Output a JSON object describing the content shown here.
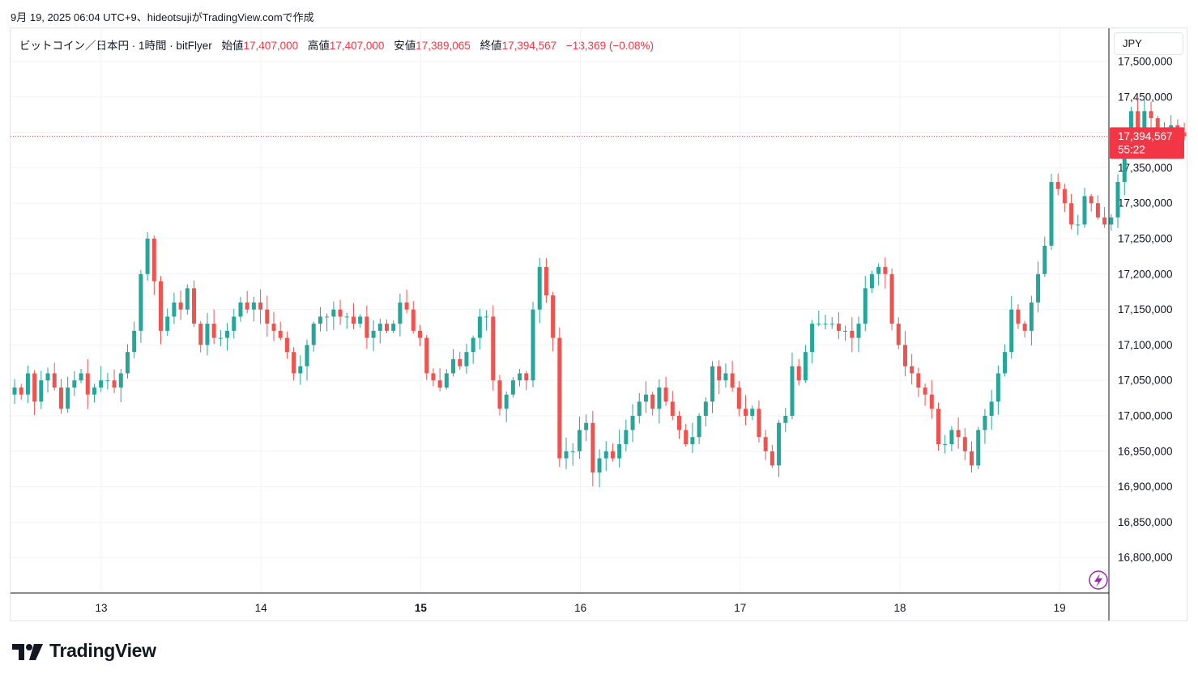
{
  "caption": "9月 19, 2025 06:04 UTC+9、hideotsujiがTradingView.comで作成",
  "legend": {
    "symbol": "ビットコイン／日本円 · 1時間 · bitFlyer",
    "open_label": "始値",
    "open_value": "17,407,000",
    "high_label": "高値",
    "high_value": "17,407,000",
    "low_label": "安値",
    "low_value": "17,389,065",
    "close_label": "終値",
    "close_value": "17,394,567",
    "change": "−13,369 (−0.08%)"
  },
  "currency_button": "JPY",
  "price_tag": {
    "price": "17,394,567",
    "countdown": "55:22"
  },
  "brand": "TradingView",
  "colors": {
    "up": "#26a69a",
    "down": "#ef5350",
    "grid": "#f0f3fa",
    "axis_text": "#131722",
    "accent": "#9c27b0"
  },
  "icons": [
    "lightning-icon",
    "tradingview-logo-icon"
  ],
  "chart_data": {
    "type": "candlestick",
    "title": "ビットコイン／日本円 · 1時間 · bitFlyer",
    "currency": "JPY",
    "y_ticks": [
      "16,800,000",
      "16,850,000",
      "16,900,000",
      "16,950,000",
      "17,000,000",
      "17,050,000",
      "17,100,000",
      "17,150,000",
      "17,200,000",
      "17,250,000",
      "17,300,000",
      "17,350,000",
      "17,400,000",
      "17,450,000",
      "17,500,000"
    ],
    "x_ticks": [
      {
        "label": "13",
        "bold": false
      },
      {
        "label": "14",
        "bold": false
      },
      {
        "label": "15",
        "bold": true
      },
      {
        "label": "16",
        "bold": false
      },
      {
        "label": "17",
        "bold": false
      },
      {
        "label": "18",
        "bold": false
      },
      {
        "label": "19",
        "bold": false
      }
    ],
    "ylim": [
      16755000,
      17510000
    ],
    "last_price": 17394567,
    "grid": true,
    "closes": [
      17040000,
      17030000,
      17060000,
      17020000,
      17050000,
      17060000,
      17040000,
      17010000,
      17040000,
      17050000,
      17060000,
      17030000,
      17040000,
      17050000,
      17050000,
      17040000,
      17060000,
      17090000,
      17120000,
      17200000,
      17250000,
      17190000,
      17120000,
      17140000,
      17160000,
      17150000,
      17180000,
      17130000,
      17100000,
      17130000,
      17110000,
      17110000,
      17120000,
      17140000,
      17160000,
      17150000,
      17160000,
      17150000,
      17130000,
      17120000,
      17110000,
      17090000,
      17060000,
      17070000,
      17100000,
      17130000,
      17140000,
      17140000,
      17150000,
      17140000,
      17140000,
      17130000,
      17140000,
      17110000,
      17120000,
      17130000,
      17120000,
      17130000,
      17160000,
      17150000,
      17120000,
      17110000,
      17060000,
      17050000,
      17040000,
      17060000,
      17080000,
      17070000,
      17090000,
      17110000,
      17140000,
      17140000,
      17050000,
      17010000,
      17030000,
      17050000,
      17060000,
      17050000,
      17150000,
      17210000,
      17170000,
      17110000,
      16940000,
      16950000,
      16950000,
      16980000,
      16990000,
      16920000,
      16940000,
      16950000,
      16940000,
      16960000,
      16980000,
      17000000,
      17020000,
      17030000,
      17010000,
      17040000,
      17020000,
      17000000,
      16980000,
      16960000,
      16970000,
      17000000,
      17020000,
      17070000,
      17050000,
      17060000,
      17040000,
      17010000,
      17000000,
      17010000,
      16970000,
      16950000,
      16930000,
      16990000,
      17000000,
      17070000,
      17050000,
      17090000,
      17130000,
      17130000,
      17130000,
      17130000,
      17120000,
      17120000,
      17110000,
      17130000,
      17180000,
      17200000,
      17210000,
      17200000,
      17130000,
      17100000,
      17070000,
      17060000,
      17040000,
      17030000,
      17010000,
      16960000,
      16960000,
      16980000,
      16970000,
      16950000,
      16930000,
      16980000,
      17000000,
      17020000,
      17060000,
      17090000,
      17150000,
      17130000,
      17120000,
      17160000,
      17200000,
      17240000,
      17330000,
      17320000,
      17300000,
      17270000,
      17270000,
      17310000,
      17300000,
      17280000,
      17270000,
      17280000,
      17330000,
      17370000,
      17430000,
      17400000,
      17430000,
      17420000,
      17400000,
      17400000,
      17410000,
      17400000,
      17394567
    ]
  }
}
